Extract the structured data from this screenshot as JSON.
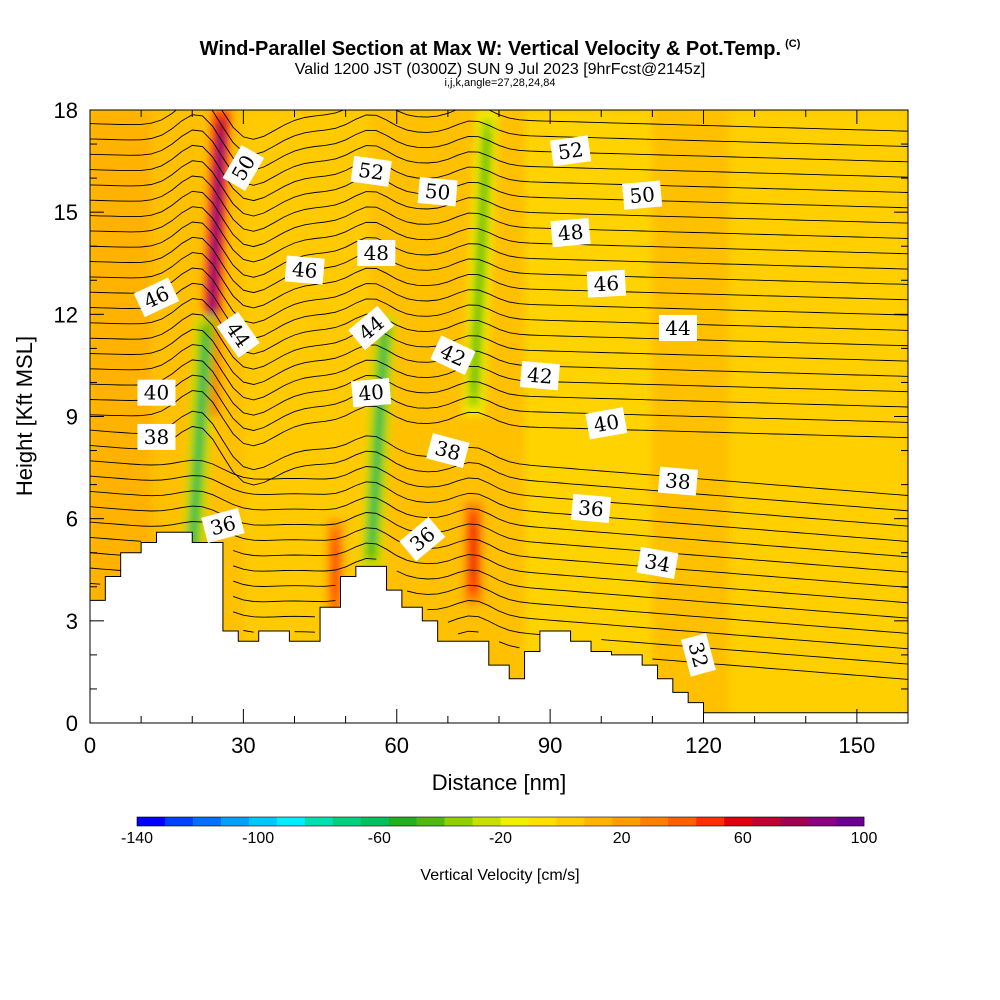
{
  "header": {
    "title": "Wind-Parallel Section at Max W: Vertical Velocity & Pot.Temp.",
    "copyright": "(C)",
    "valid_line": "Valid 1200 JST (0300Z) SUN 9 Jul 2023 [9hrFcst@2145z]",
    "params_line": "i,j,k,angle=27,28,24,84"
  },
  "chart_data": {
    "type": "heatmap",
    "title": "Wind-Parallel Section at Max W: Vertical Velocity & Pot.Temp.",
    "xlabel": "Distance [nm]",
    "ylabel": "Height [Kft MSL]",
    "xlim": [
      0,
      160
    ],
    "ylim": [
      0,
      18
    ],
    "xticks": [
      0,
      30,
      60,
      90,
      120,
      150
    ],
    "yticks": [
      0,
      3,
      6,
      9,
      12,
      15,
      18
    ],
    "colorbar": {
      "label": "Vertical Velocity [cm/s]",
      "range": [
        -140,
        100
      ],
      "tick_labels": [
        "-140",
        "-100",
        "-60",
        "-20",
        "20",
        "60",
        "100"
      ],
      "colors": [
        "#0000ff",
        "#0040ff",
        "#0070ff",
        "#00a0ff",
        "#00c8ff",
        "#00eeff",
        "#00e0b0",
        "#00d080",
        "#00c060",
        "#20b020",
        "#50b810",
        "#90d000",
        "#c8e000",
        "#f0f000",
        "#ffe000",
        "#ffcc00",
        "#ffb400",
        "#ff9c00",
        "#ff8000",
        "#ff6000",
        "#ff3000",
        "#e00010",
        "#c00030",
        "#a00050",
        "#8c0080",
        "#6a0090"
      ]
    },
    "velocity_features": [
      {
        "kind": "updraft",
        "x": 23,
        "ymin": 9,
        "ymax": 18,
        "peak": 100
      },
      {
        "kind": "updraft",
        "x": 48,
        "ymin": 3,
        "ymax": 6,
        "peak": 50
      },
      {
        "kind": "updraft",
        "x": 75,
        "ymin": 3.5,
        "ymax": 6.5,
        "peak": 60
      },
      {
        "kind": "downdraft",
        "x": 20,
        "ymin": 4.5,
        "ymax": 12,
        "peak": -60
      },
      {
        "kind": "downdraft",
        "x": 55,
        "ymin": 4.5,
        "ymax": 12,
        "peak": -60
      },
      {
        "kind": "downdraft",
        "x": 75,
        "ymin": 9,
        "ymax": 18,
        "peak": -40
      }
    ],
    "terrain": [
      [
        0,
        3.6
      ],
      [
        3,
        3.6
      ],
      [
        3,
        4.3
      ],
      [
        6,
        4.3
      ],
      [
        6,
        5.0
      ],
      [
        10,
        5.0
      ],
      [
        10,
        5.3
      ],
      [
        13,
        5.3
      ],
      [
        13,
        5.6
      ],
      [
        20,
        5.6
      ],
      [
        20,
        5.3
      ],
      [
        26,
        5.3
      ],
      [
        26,
        2.7
      ],
      [
        29,
        2.7
      ],
      [
        29,
        2.4
      ],
      [
        33,
        2.4
      ],
      [
        33,
        2.7
      ],
      [
        39,
        2.7
      ],
      [
        39,
        2.4
      ],
      [
        45,
        2.4
      ],
      [
        45,
        3.4
      ],
      [
        49,
        3.4
      ],
      [
        49,
        4.3
      ],
      [
        52,
        4.3
      ],
      [
        52,
        4.6
      ],
      [
        58,
        4.6
      ],
      [
        58,
        3.9
      ],
      [
        61,
        3.9
      ],
      [
        61,
        3.4
      ],
      [
        65,
        3.4
      ],
      [
        65,
        3.0
      ],
      [
        68,
        3.0
      ],
      [
        68,
        2.4
      ],
      [
        78,
        2.4
      ],
      [
        78,
        1.7
      ],
      [
        82,
        1.7
      ],
      [
        82,
        1.3
      ],
      [
        85,
        1.3
      ],
      [
        85,
        2.1
      ],
      [
        88,
        2.1
      ],
      [
        88,
        2.7
      ],
      [
        94,
        2.7
      ],
      [
        94,
        2.4
      ],
      [
        98,
        2.4
      ],
      [
        98,
        2.1
      ],
      [
        102,
        2.1
      ],
      [
        102,
        2.0
      ],
      [
        108,
        2.0
      ],
      [
        108,
        1.7
      ],
      [
        111,
        1.7
      ],
      [
        111,
        1.3
      ],
      [
        114,
        1.3
      ],
      [
        114,
        0.9
      ],
      [
        117,
        0.9
      ],
      [
        117,
        0.6
      ],
      [
        120,
        0.6
      ],
      [
        120,
        0.3
      ],
      [
        160,
        0.3
      ]
    ],
    "contour_labels": [
      {
        "text": "50",
        "x": 30,
        "y": 16.3,
        "angle": 60
      },
      {
        "text": "52",
        "x": 55,
        "y": 16.2,
        "angle": -8
      },
      {
        "text": "50",
        "x": 68,
        "y": 15.6,
        "angle": -5
      },
      {
        "text": "52",
        "x": 94,
        "y": 16.8,
        "angle": 8
      },
      {
        "text": "50",
        "x": 108,
        "y": 15.5,
        "angle": 5
      },
      {
        "text": "48",
        "x": 56,
        "y": 13.8,
        "angle": 0
      },
      {
        "text": "48",
        "x": 94,
        "y": 14.4,
        "angle": 5
      },
      {
        "text": "46",
        "x": 42,
        "y": 13.3,
        "angle": -5
      },
      {
        "text": "46",
        "x": 13,
        "y": 12.5,
        "angle": 25
      },
      {
        "text": "46",
        "x": 101,
        "y": 12.9,
        "angle": 3
      },
      {
        "text": "44",
        "x": 29,
        "y": 11.4,
        "angle": -55
      },
      {
        "text": "44",
        "x": 55,
        "y": 11.6,
        "angle": 40
      },
      {
        "text": "44",
        "x": 115,
        "y": 11.6,
        "angle": 0
      },
      {
        "text": "42",
        "x": 71,
        "y": 10.8,
        "angle": -25
      },
      {
        "text": "42",
        "x": 88,
        "y": 10.2,
        "angle": -5
      },
      {
        "text": "40",
        "x": 13,
        "y": 9.7,
        "angle": 0
      },
      {
        "text": "40",
        "x": 55,
        "y": 9.7,
        "angle": 5
      },
      {
        "text": "40",
        "x": 101,
        "y": 8.8,
        "angle": 10
      },
      {
        "text": "38",
        "x": 13,
        "y": 8.4,
        "angle": 0
      },
      {
        "text": "38",
        "x": 70,
        "y": 8.0,
        "angle": -15
      },
      {
        "text": "38",
        "x": 115,
        "y": 7.1,
        "angle": -5
      },
      {
        "text": "36",
        "x": 26,
        "y": 5.8,
        "angle": 15
      },
      {
        "text": "36",
        "x": 65,
        "y": 5.4,
        "angle": 40
      },
      {
        "text": "36",
        "x": 98,
        "y": 6.3,
        "angle": -5
      },
      {
        "text": "34",
        "x": 111,
        "y": 4.7,
        "angle": -10
      },
      {
        "text": "32",
        "x": 119,
        "y": 2.0,
        "angle": -75
      }
    ]
  }
}
